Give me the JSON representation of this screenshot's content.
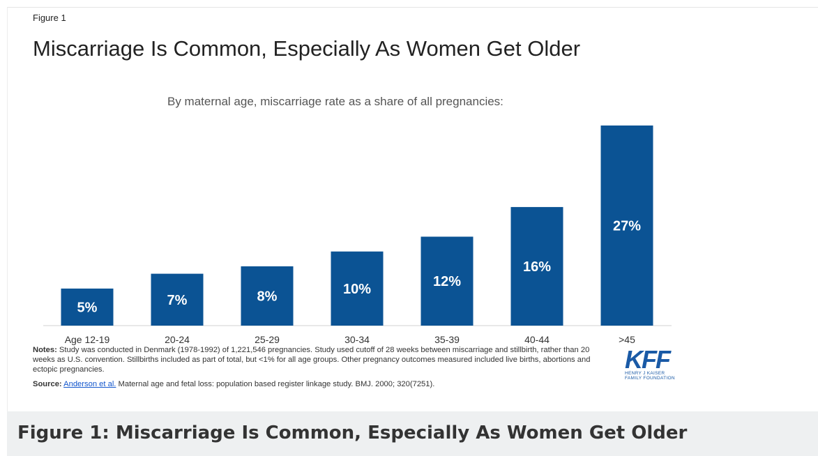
{
  "figure": {
    "label": "Figure 1",
    "title": "Miscarriage Is Common, Especially As Women Get Older",
    "subtitle": "By maternal age, miscarriage rate as a share of all pregnancies:"
  },
  "chart_data": {
    "type": "bar",
    "title": "Miscarriage Is Common, Especially As Women Get Older",
    "subtitle": "By maternal age, miscarriage rate as a share of all pregnancies:",
    "categories": [
      "Age 12-19",
      "20-24",
      "25-29",
      "30-34",
      "35-39",
      "40-44",
      ">45"
    ],
    "values": [
      5,
      7,
      8,
      10,
      12,
      16,
      27
    ],
    "value_labels": [
      "5%",
      "7%",
      "8%",
      "10%",
      "12%",
      "16%",
      "27%"
    ],
    "unit": "%",
    "xlabel": "",
    "ylabel": "",
    "ylim": [
      0,
      27
    ],
    "grid": false,
    "legend": "none",
    "bar_color": "#0b5394"
  },
  "notes": {
    "label": "Notes:",
    "text": "Study was conducted in Denmark (1978-1992) of 1,221,546 pregnancies. Study used cutoff of 28 weeks between miscarriage and stillbirth, rather than 20 weeks as U.S. convention. Stillbirths included as part of total, but <1% for all age groups. Other pregnancy outcomes measured included live births, abortions and ectopic pregnancies."
  },
  "source": {
    "label": "Source:",
    "link_text": "Anderson et al.",
    "text": "Maternal age and fetal loss: population based register linkage study. BMJ. 2000; 320(7251)."
  },
  "logo": {
    "name": "KFF",
    "sub_line1": "HENRY J KAISER",
    "sub_line2": "FAMILY FOUNDATION"
  },
  "caption": "Figure 1: Miscarriage Is Common, Especially As Women Get Older"
}
